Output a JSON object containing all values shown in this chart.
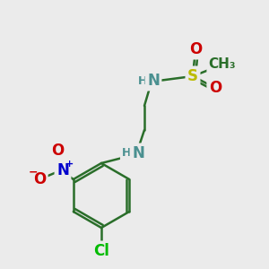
{
  "bg_color": "#ebebeb",
  "bond_color": "#2a6e2a",
  "bond_width": 1.8,
  "atom_colors": {
    "C": "#2a6e2a",
    "N": "#4a9090",
    "O": "#cc0000",
    "S": "#bbbb00",
    "Cl": "#00bb00",
    "H": "#4a9090",
    "N_plus": "#0000cc",
    "O_minus": "#cc0000"
  },
  "font_size_atom": 12,
  "font_size_small": 9,
  "font_size_ch3": 11
}
